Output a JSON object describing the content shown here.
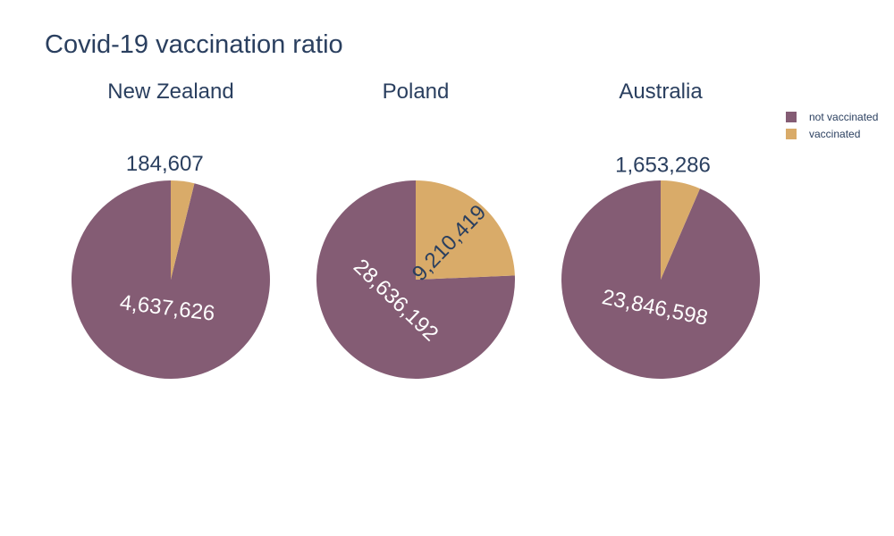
{
  "chart_data": {
    "type": "pie",
    "title": "Covid-19 vaccination ratio",
    "legend": {
      "placement": "top-right"
    },
    "labels": [
      "not vaccinated",
      "vaccinated"
    ],
    "colors": {
      "not vaccinated": "#845c74",
      "vaccinated": "#d9ab69"
    },
    "pies": [
      {
        "title": "New Zealand",
        "values": {
          "not vaccinated": 4637626,
          "vaccinated": 184607
        },
        "text": {
          "not vaccinated": "4,637,626",
          "vaccinated": "184,607"
        }
      },
      {
        "title": "Poland",
        "values": {
          "not vaccinated": 28636192,
          "vaccinated": 9210419
        },
        "text": {
          "not vaccinated": "28,636,192",
          "vaccinated": "9,210,419"
        }
      },
      {
        "title": "Australia",
        "values": {
          "not vaccinated": 23846598,
          "vaccinated": 1653286
        },
        "text": {
          "not vaccinated": "23,846,598",
          "vaccinated": "1,653,286"
        }
      }
    ]
  }
}
